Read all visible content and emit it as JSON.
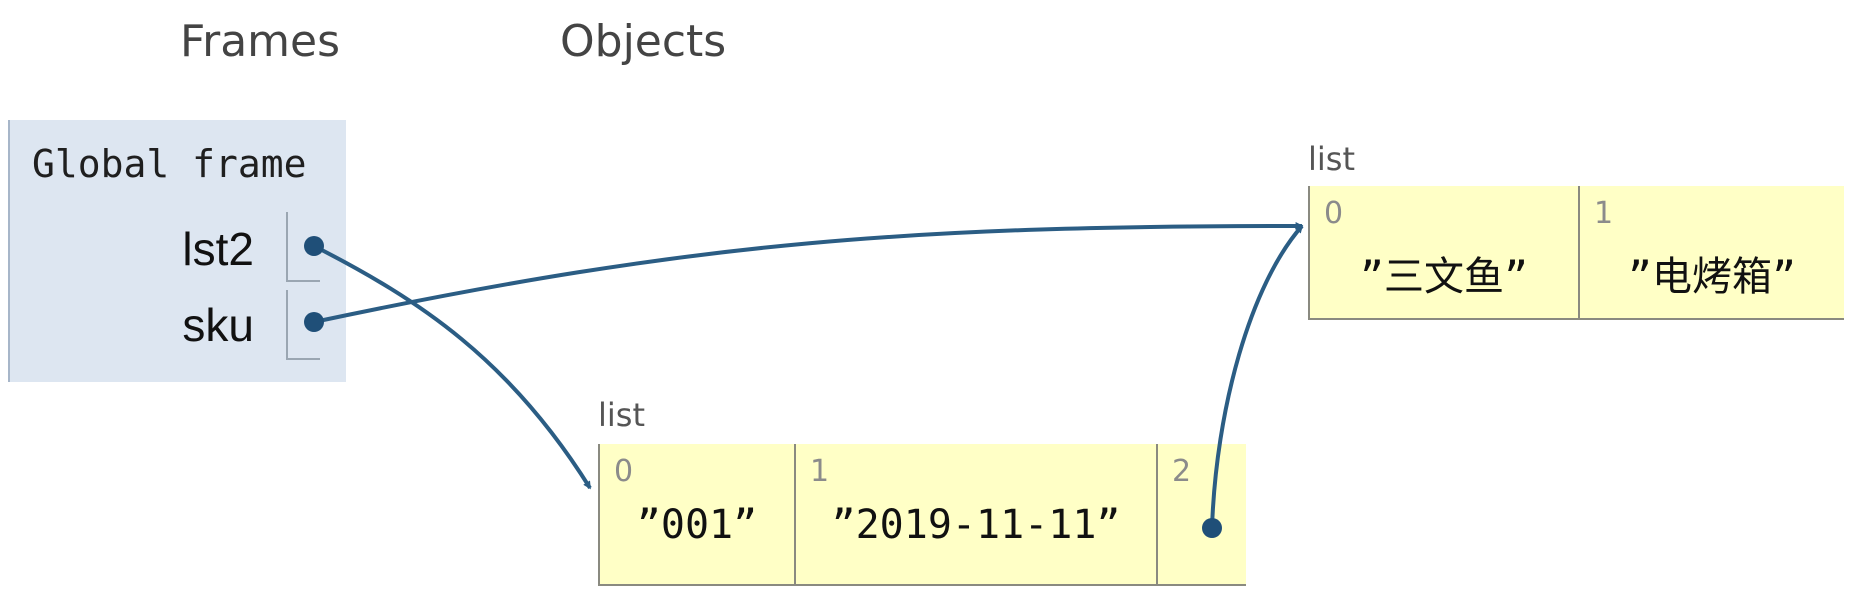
{
  "headers": {
    "frames": "Frames",
    "objects": "Objects"
  },
  "global_frame": {
    "title": "Global frame",
    "variables": [
      {
        "name": "lst2"
      },
      {
        "name": "sku"
      }
    ]
  },
  "objects": [
    {
      "type_label": "list",
      "items": [
        {
          "index": "0",
          "value": "”三文鱼”"
        },
        {
          "index": "1",
          "value": "”电烤箱”"
        }
      ]
    },
    {
      "type_label": "list",
      "items": [
        {
          "index": "0",
          "value": "”001”"
        },
        {
          "index": "1",
          "value": "”2019-11-11”"
        },
        {
          "index": "2",
          "value": ""
        }
      ]
    }
  ],
  "colors": {
    "frame_bg": "#dde6f1",
    "object_bg": "#ffffc6",
    "pointer": "#2b5d84"
  }
}
